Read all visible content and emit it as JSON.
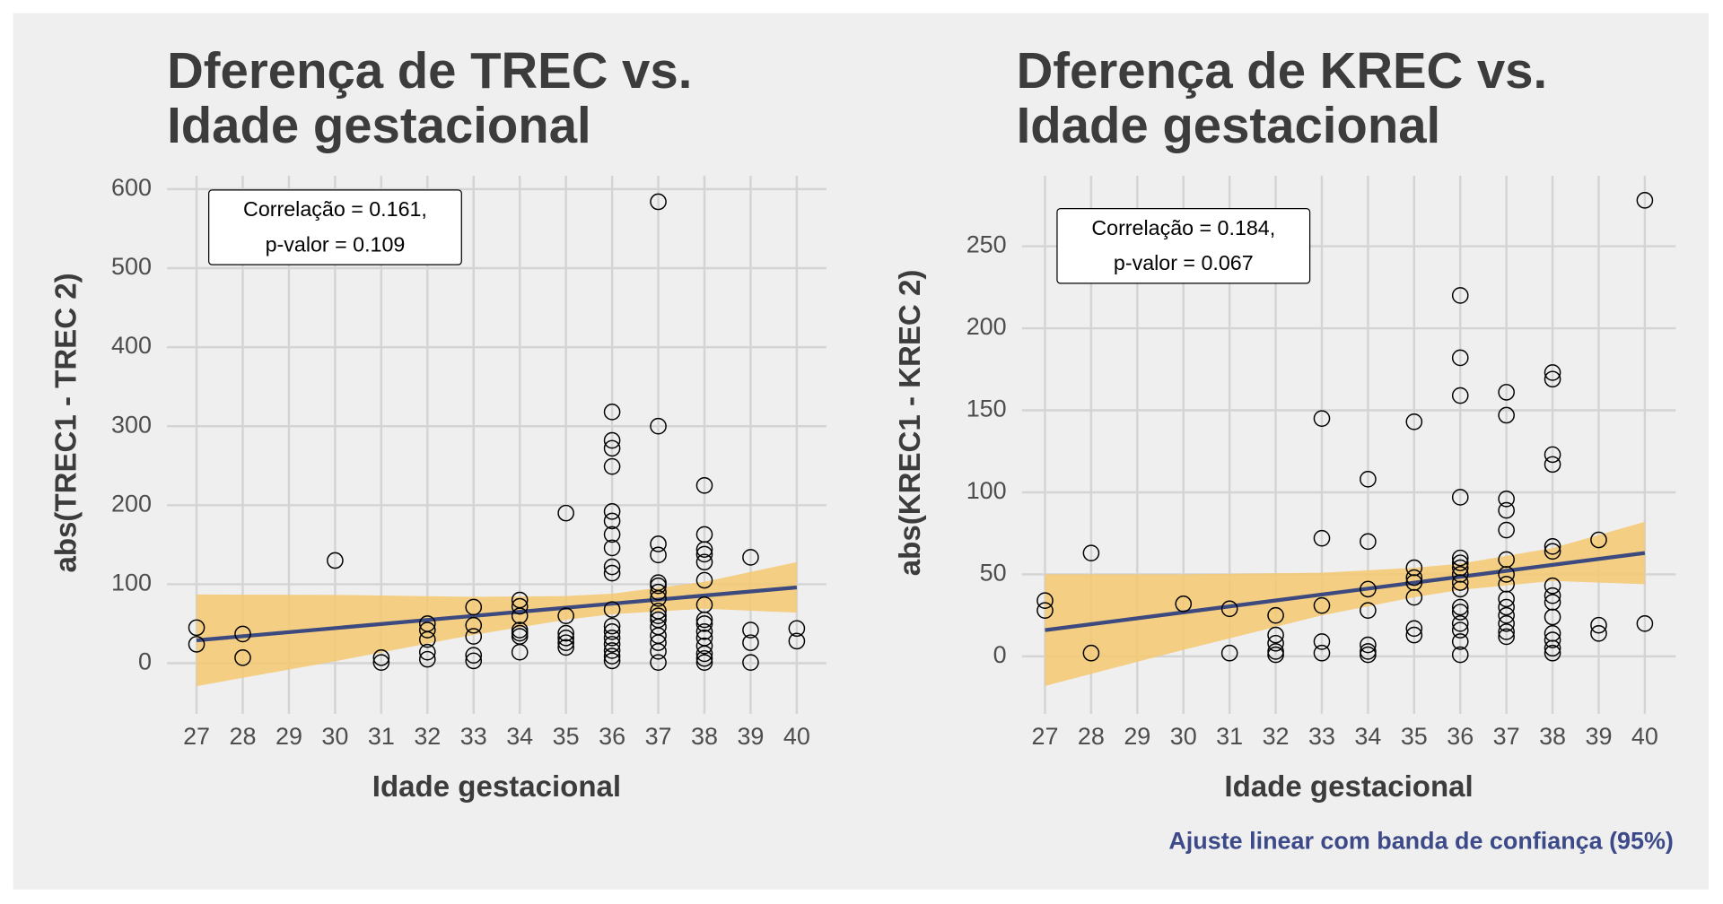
{
  "chart_data": [
    {
      "type": "scatter",
      "title": [
        "Dferença de TREC vs.",
        "Idade gestacional"
      ],
      "x_label": "Idade gestacional",
      "y_label": "abs(TREC1 - TREC 2)",
      "x": [
        27,
        27,
        28,
        28,
        30,
        31,
        31,
        32,
        32,
        32,
        32,
        32,
        33,
        33,
        33,
        33,
        33,
        34,
        34,
        34,
        34,
        34,
        34,
        34,
        35,
        35,
        35,
        35,
        35,
        35,
        36,
        36,
        36,
        36,
        36,
        36,
        36,
        36,
        36,
        36,
        36,
        36,
        36,
        36,
        36,
        36,
        36,
        36,
        37,
        37,
        37,
        37,
        37,
        37,
        37,
        37,
        37,
        37,
        37,
        37,
        37,
        37,
        37,
        37,
        38,
        38,
        38,
        38,
        38,
        38,
        38,
        38,
        38,
        38,
        38,
        38,
        38,
        38,
        38,
        39,
        39,
        39,
        39,
        40,
        40
      ],
      "y": [
        45,
        24,
        37,
        7,
        130,
        7,
        1,
        50,
        42,
        30,
        14,
        5,
        71,
        48,
        34,
        10,
        3,
        80,
        72,
        60,
        42,
        38,
        34,
        14,
        190,
        60,
        38,
        32,
        26,
        20,
        318,
        282,
        272,
        249,
        192,
        180,
        163,
        146,
        122,
        114,
        68,
        47,
        40,
        32,
        24,
        16,
        9,
        3,
        584,
        300,
        151,
        137,
        102,
        98,
        90,
        82,
        66,
        60,
        55,
        46,
        35,
        26,
        15,
        1,
        225,
        163,
        144,
        138,
        128,
        105,
        74,
        55,
        50,
        40,
        32,
        22,
        12,
        6,
        1,
        134,
        42,
        26,
        1,
        44,
        28
      ],
      "point_color": "#000000",
      "fit": {
        "x": [
          27,
          40
        ],
        "y": [
          29,
          96
        ],
        "color": "#3d4a80"
      },
      "band": {
        "x": [
          27,
          30,
          33,
          35,
          36,
          38,
          40
        ],
        "lower": [
          -29,
          2.5,
          36,
          55,
          62,
          69,
          64
        ],
        "upper": [
          87,
          86.5,
          84,
          85,
          88,
          103,
          128
        ],
        "color": "#f5c86f"
      },
      "annotation": [
        "Correlação = 0.161,",
        "p-valor = 0.109"
      ],
      "xlim": [
        26.36,
        40.64
      ],
      "ylim": [
        -64,
        617
      ],
      "xticks": [
        27,
        28,
        29,
        30,
        31,
        32,
        33,
        34,
        35,
        36,
        37,
        38,
        39,
        40
      ],
      "yticks": [
        0,
        100,
        200,
        300,
        400,
        500,
        600
      ],
      "grid": true
    },
    {
      "type": "scatter",
      "title": [
        "Dferença de KREC vs.",
        "Idade gestacional"
      ],
      "x_label": "Idade gestacional",
      "y_label": "abs(KREC1 - KREC 2)",
      "x": [
        27,
        27,
        28,
        28,
        30,
        31,
        31,
        32,
        32,
        32,
        32,
        32,
        33,
        33,
        33,
        33,
        33,
        34,
        34,
        34,
        34,
        34,
        34,
        34,
        35,
        35,
        35,
        35,
        35,
        35,
        35,
        36,
        36,
        36,
        36,
        36,
        36,
        36,
        36,
        36,
        36,
        36,
        36,
        36,
        36,
        36,
        36,
        37,
        37,
        37,
        37,
        37,
        37,
        37,
        37,
        37,
        37,
        37,
        37,
        37,
        37,
        38,
        38,
        38,
        38,
        38,
        38,
        38,
        38,
        38,
        38,
        38,
        38,
        38,
        38,
        39,
        39,
        39,
        40,
        40
      ],
      "y": [
        34,
        28,
        63,
        2,
        32,
        29,
        2,
        25,
        13,
        8,
        3,
        1,
        145,
        72,
        31,
        9,
        2,
        108,
        70,
        41,
        28,
        7,
        3,
        1,
        143,
        54,
        48,
        45,
        36,
        17,
        13,
        220,
        182,
        159,
        97,
        60,
        57,
        54,
        50,
        45,
        41,
        30,
        27,
        20,
        16,
        9,
        1,
        161,
        147,
        96,
        89,
        77,
        59,
        50,
        44,
        35,
        30,
        25,
        20,
        15,
        12,
        173,
        169,
        123,
        117,
        67,
        64,
        43,
        37,
        33,
        24,
        14,
        10,
        5,
        2,
        71,
        19,
        14,
        278,
        20
      ],
      "point_color": "#000000",
      "fit": {
        "x": [
          27,
          40
        ],
        "y": [
          16,
          63
        ],
        "color": "#3d4a80"
      },
      "band": {
        "x": [
          27,
          30,
          33,
          35,
          36,
          38,
          40
        ],
        "lower": [
          -18,
          4,
          25,
          36,
          40.5,
          46,
          44
        ],
        "upper": [
          50,
          50,
          51,
          54,
          56.5,
          66,
          82
        ],
        "color": "#f5c86f"
      },
      "annotation": [
        "Correlação = 0.184,",
        "p-valor = 0.067"
      ],
      "caption": "Ajuste linear com banda de confiança (95%)",
      "caption_color": "#3d4a89",
      "xlim": [
        26.5,
        40.67
      ],
      "ylim": [
        -35,
        293
      ],
      "xticks": [
        27,
        28,
        29,
        30,
        31,
        32,
        33,
        34,
        35,
        36,
        37,
        38,
        39,
        40
      ],
      "yticks": [
        0,
        50,
        100,
        150,
        200,
        250
      ],
      "grid": true
    }
  ]
}
